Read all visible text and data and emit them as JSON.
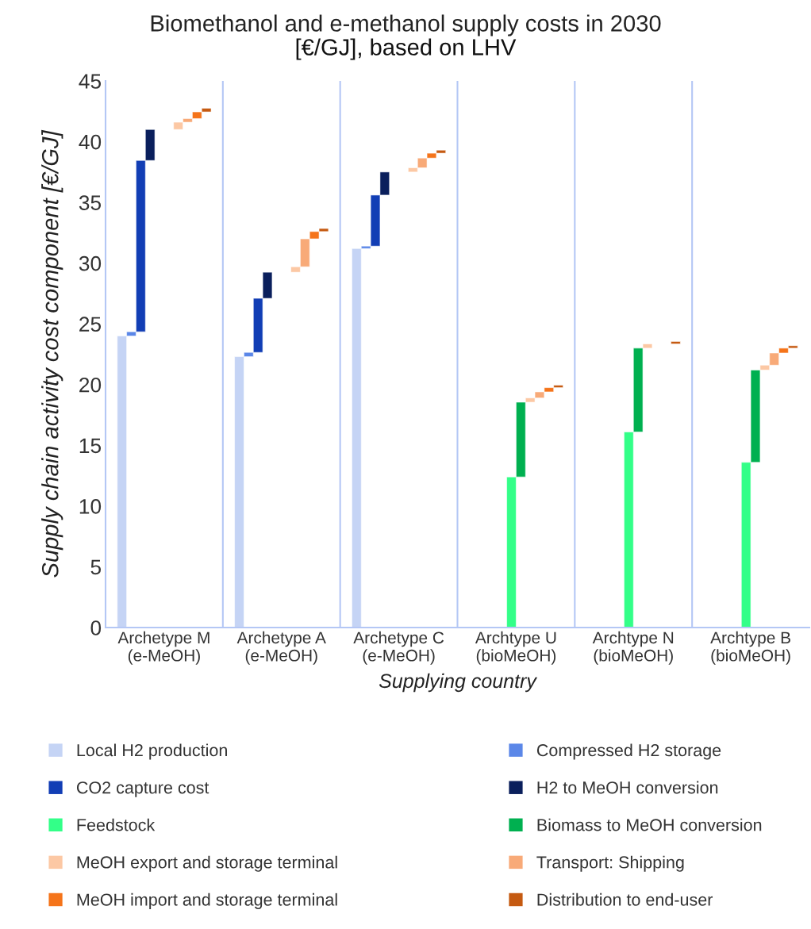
{
  "chart_data": {
    "type": "bar",
    "title": "Biomethanol and e-methanol supply costs in 2030",
    "subtitle": "[€/GJ], based on LHV",
    "xlabel": "Supplying country",
    "ylabel": "Supply chain activity cost component [€/GJ]",
    "categories": [
      "Archetype M\n(e-MeOH)",
      "Archetype A\n(e-MeOH)",
      "Archetype C\n(e-MeOH)",
      "Archtype U\n(bioMeOH)",
      "Archtype N\n(bioMeOH)",
      "Archtype B\n(bioMeOH)"
    ],
    "series": [
      {
        "name": "Local H2 production",
        "color": "#c5d4f5",
        "values": [
          24.0,
          22.3,
          31.2,
          null,
          null,
          null
        ],
        "base": [
          0,
          0,
          0,
          null,
          null,
          null
        ]
      },
      {
        "name": "Compressed H2 storage",
        "color": "#5b87e8",
        "values": [
          0.35,
          0.35,
          0.2,
          null,
          null,
          null
        ],
        "base": [
          24.0,
          22.3,
          31.2,
          null,
          null,
          null
        ]
      },
      {
        "name": "CO2 capture cost",
        "color": "#123eb5",
        "values": [
          14.1,
          4.45,
          4.2,
          null,
          null,
          null
        ],
        "base": [
          24.35,
          22.65,
          31.4,
          null,
          null,
          null
        ]
      },
      {
        "name": "H2 to MeOH conversion",
        "color": "#0a1f5c",
        "values": [
          2.55,
          2.15,
          1.9,
          null,
          null,
          null
        ],
        "base": [
          38.45,
          27.1,
          35.6,
          null,
          null,
          null
        ]
      },
      {
        "name": "Feedstock",
        "color": "#33ff88",
        "values": [
          null,
          null,
          null,
          12.4,
          16.1,
          13.6
        ],
        "base": [
          null,
          null,
          null,
          0,
          0,
          0
        ]
      },
      {
        "name": "Biomass to MeOH conversion",
        "color": "#00b050",
        "values": [
          null,
          null,
          null,
          6.15,
          6.9,
          7.6
        ],
        "base": [
          null,
          null,
          null,
          12.4,
          16.1,
          13.6
        ]
      },
      {
        "name": "MeOH export and storage terminal",
        "color": "#fcc8a4",
        "values": [
          0.6,
          0.45,
          0.35,
          0.35,
          0.35,
          0.4
        ],
        "base": [
          41.0,
          29.25,
          37.5,
          18.55,
          23.0,
          21.2
        ]
      },
      {
        "name": "Transport: Shipping",
        "color": "#f8aa78",
        "values": [
          0.3,
          2.3,
          0.8,
          0.5,
          null,
          1.0
        ],
        "base": [
          41.6,
          29.7,
          37.85,
          18.9,
          null,
          21.6
        ]
      },
      {
        "name": "MeOH import and storage terminal",
        "color": "#f5741a",
        "values": [
          0.55,
          0.6,
          0.4,
          0.35,
          null,
          0.4
        ],
        "base": [
          41.9,
          32.0,
          38.65,
          19.4,
          null,
          22.6
        ]
      },
      {
        "name": "Distribution to end-user",
        "color": "#c55a11",
        "values": [
          0.3,
          0.25,
          0.25,
          0.2,
          0.2,
          0.2
        ],
        "base": [
          42.45,
          32.6,
          39.05,
          19.75,
          23.35,
          23.0
        ]
      }
    ],
    "ylim": [
      0,
      45
    ],
    "yticks": [
      0,
      5,
      10,
      15,
      20,
      25,
      30,
      35,
      40,
      45
    ],
    "grid": "x",
    "legend": "bottom"
  }
}
